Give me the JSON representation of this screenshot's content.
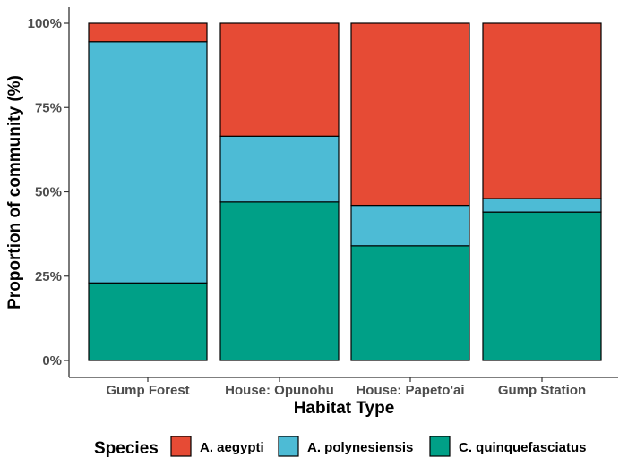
{
  "chart_data": {
    "type": "bar",
    "stacked": true,
    "categories": [
      "Gump Forest",
      "House: Opunohu",
      "House: Papeto'ai",
      "Gump Station"
    ],
    "series": [
      {
        "name": "C. quinquefasciatus",
        "color": "#00A087",
        "values": [
          23,
          47,
          34,
          44
        ]
      },
      {
        "name": "A. polynesiensis",
        "color": "#4DBBD5",
        "values": [
          71.5,
          19.5,
          12,
          4
        ]
      },
      {
        "name": "A. aegypti",
        "color": "#E64B35",
        "values": [
          5.5,
          33.5,
          54,
          52
        ]
      }
    ],
    "xlabel": "Habitat Type",
    "ylabel": "Proportion of community (%)",
    "ylim": [
      0,
      100
    ],
    "yticks": [
      "0%",
      "25%",
      "50%",
      "75%",
      "100%"
    ],
    "grid": false,
    "legend": {
      "title": "Species",
      "position": "bottom",
      "items": [
        "A. aegypti",
        "A. polynesiensis",
        "C. quinquefasciatus"
      ]
    }
  }
}
